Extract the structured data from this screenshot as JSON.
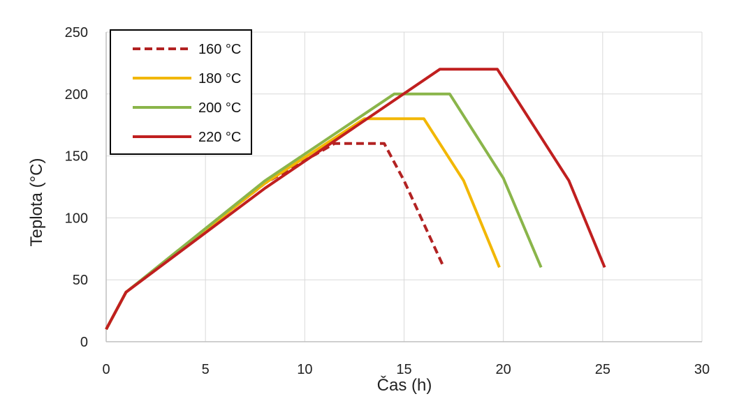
{
  "chart_data": {
    "type": "line",
    "xlabel": "Čas (h)",
    "ylabel": "Teplota (°C)",
    "xlim": [
      0,
      30
    ],
    "ylim": [
      0,
      250
    ],
    "xticks": [
      "0",
      "5",
      "10",
      "15",
      "20",
      "25",
      "30"
    ],
    "yticks": [
      "0",
      "50",
      "100",
      "150",
      "200",
      "250"
    ],
    "grid": true,
    "legend_position": "top-left",
    "series": [
      {
        "name": "160 °C",
        "color": "#b22222",
        "dash": true,
        "points": [
          [
            0,
            10
          ],
          [
            1,
            40
          ],
          [
            8,
            128
          ],
          [
            11.5,
            160
          ],
          [
            14,
            160
          ],
          [
            15,
            130
          ],
          [
            17,
            60
          ]
        ]
      },
      {
        "name": "180 °C",
        "color": "#f2b705",
        "dash": false,
        "points": [
          [
            0,
            10
          ],
          [
            1,
            40
          ],
          [
            8,
            128
          ],
          [
            13,
            180
          ],
          [
            16,
            180
          ],
          [
            18,
            130
          ],
          [
            19.8,
            60
          ]
        ]
      },
      {
        "name": "200 °C",
        "color": "#8ab54a",
        "dash": false,
        "points": [
          [
            0,
            10
          ],
          [
            1,
            40
          ],
          [
            8,
            130
          ],
          [
            14.5,
            200
          ],
          [
            17.3,
            200
          ],
          [
            20,
            132
          ],
          [
            21.9,
            60
          ]
        ]
      },
      {
        "name": "220 °C",
        "color": "#c01f1f",
        "dash": false,
        "points": [
          [
            0,
            10
          ],
          [
            1,
            40
          ],
          [
            8,
            124
          ],
          [
            16.8,
            220
          ],
          [
            19.7,
            220
          ],
          [
            23.3,
            130
          ],
          [
            25.1,
            60
          ]
        ]
      }
    ]
  }
}
